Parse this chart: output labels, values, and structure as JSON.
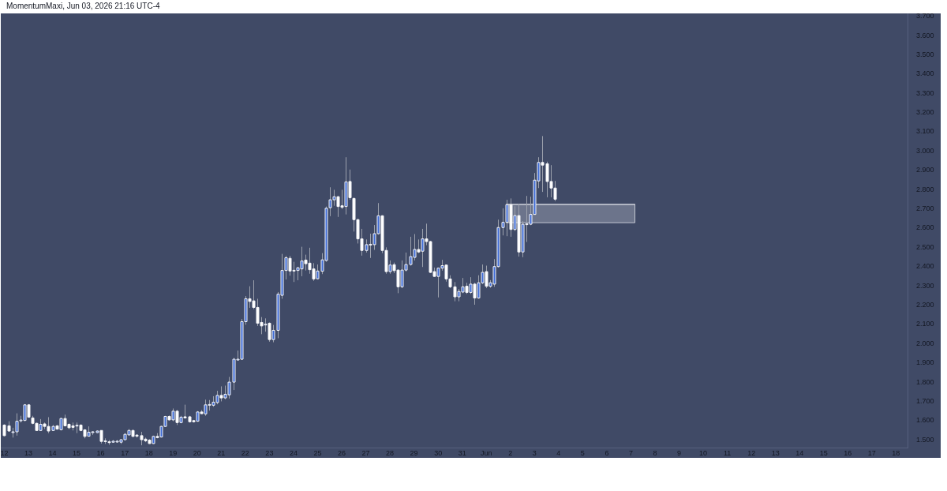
{
  "chart_data": {
    "type": "candlestick",
    "title": "MomentumMaxi, Jun 03, 2026 21:16 UTC-4",
    "series": [
      {
        "type": "line",
        "x": [
          "2026-06-01T20:00",
          "2026-06-07T04:00"
        ],
        "values": [
          2.723,
          2.723
        ],
        "lower": [
          2.628,
          2.628
        ],
        "upper": [
          2.723,
          2.723
        ],
        "color": "#d5d8e0"
      },
      {
        "x": [
          "2026-05-12T00:00",
          "2026-05-12T04:00",
          "2026-05-12T08:00",
          "2026-05-12T12:00",
          "2026-05-12T16:00",
          "2026-05-12T20:00",
          "2026-05-13T00:00",
          "2026-05-13T04:00",
          "2026-05-13T08:00",
          "2026-05-13T12:00",
          "2026-05-13T16:00",
          "2026-05-13T20:00",
          "2026-05-14T00:00",
          "2026-05-14T04:00",
          "2026-05-14T08:00",
          "2026-05-14T12:00",
          "2026-05-14T16:00",
          "2026-05-14T20:00",
          "2026-05-15T00:00",
          "2026-05-15T04:00",
          "2026-05-15T08:00",
          "2026-05-15T12:00",
          "2026-05-15T16:00",
          "2026-05-15T20:00",
          "2026-05-16T00:00",
          "2026-05-16T04:00",
          "2026-05-16T08:00",
          "2026-05-16T12:00",
          "2026-05-16T16:00",
          "2026-05-16T20:00",
          "2026-05-17T00:00",
          "2026-05-17T04:00",
          "2026-05-17T08:00",
          "2026-05-17T12:00",
          "2026-05-17T16:00",
          "2026-05-17T20:00",
          "2026-05-18T00:00",
          "2026-05-18T04:00",
          "2026-05-18T08:00",
          "2026-05-18T12:00",
          "2026-05-18T16:00",
          "2026-05-18T20:00",
          "2026-05-19T00:00",
          "2026-05-19T04:00",
          "2026-05-19T08:00",
          "2026-05-19T12:00",
          "2026-05-19T16:00",
          "2026-05-19T20:00",
          "2026-05-20T00:00",
          "2026-05-20T04:00",
          "2026-05-20T08:00",
          "2026-05-20T12:00",
          "2026-05-20T16:00",
          "2026-05-20T20:00",
          "2026-05-21T00:00",
          "2026-05-21T04:00",
          "2026-05-21T08:00",
          "2026-05-21T12:00",
          "2026-05-21T16:00",
          "2026-05-21T20:00",
          "2026-05-22T00:00",
          "2026-05-22T04:00",
          "2026-05-22T08:00",
          "2026-05-22T12:00",
          "2026-05-22T16:00",
          "2026-05-22T20:00",
          "2026-05-23T00:00",
          "2026-05-23T04:00",
          "2026-05-23T08:00",
          "2026-05-23T12:00",
          "2026-05-23T16:00",
          "2026-05-23T20:00",
          "2026-05-24T00:00",
          "2026-05-24T04:00",
          "2026-05-24T08:00",
          "2026-05-24T12:00",
          "2026-05-24T16:00",
          "2026-05-24T20:00",
          "2026-05-25T00:00",
          "2026-05-25T04:00",
          "2026-05-25T08:00",
          "2026-05-25T12:00",
          "2026-05-25T16:00",
          "2026-05-25T20:00",
          "2026-05-26T00:00",
          "2026-05-26T04:00",
          "2026-05-26T08:00",
          "2026-05-26T12:00",
          "2026-05-26T16:00",
          "2026-05-26T20:00",
          "2026-05-27T00:00",
          "2026-05-27T04:00",
          "2026-05-27T08:00",
          "2026-05-27T12:00",
          "2026-05-27T16:00",
          "2026-05-27T20:00",
          "2026-05-28T00:00",
          "2026-05-28T04:00",
          "2026-05-28T08:00",
          "2026-05-28T12:00",
          "2026-05-28T16:00",
          "2026-05-28T20:00",
          "2026-05-29T00:00",
          "2026-05-29T04:00",
          "2026-05-29T08:00",
          "2026-05-29T12:00",
          "2026-05-29T16:00",
          "2026-05-29T20:00",
          "2026-05-30T00:00",
          "2026-05-30T04:00",
          "2026-05-30T08:00",
          "2026-05-30T12:00",
          "2026-05-30T16:00",
          "2026-05-30T20:00",
          "2026-05-31T00:00",
          "2026-05-31T04:00",
          "2026-05-31T08:00",
          "2026-05-31T12:00",
          "2026-05-31T16:00",
          "2026-05-31T20:00",
          "2026-06-01T00:00",
          "2026-06-01T04:00",
          "2026-06-01T08:00",
          "2026-06-01T12:00",
          "2026-06-01T16:00",
          "2026-06-01T20:00",
          "2026-06-02T00:00",
          "2026-06-02T04:00",
          "2026-06-02T08:00",
          "2026-06-02T12:00",
          "2026-06-02T16:00",
          "2026-06-02T20:00",
          "2026-06-03T00:00",
          "2026-06-03T04:00",
          "2026-06-03T08:00",
          "2026-06-03T12:00",
          "2026-06-03T16:00",
          "2026-06-03T20:00"
        ],
        "ohlc": [
          [
            1.577,
            1.581,
            1.518,
            1.522
          ],
          [
            1.573,
            1.597,
            1.542,
            1.546
          ],
          [
            1.54,
            1.563,
            1.512,
            1.542
          ],
          [
            1.542,
            1.638,
            1.522,
            1.597
          ],
          [
            1.601,
            1.625,
            1.59,
            1.603
          ],
          [
            1.601,
            1.686,
            1.597,
            1.682
          ],
          [
            1.682,
            1.686,
            1.615,
            1.618
          ],
          [
            1.614,
            1.625,
            1.581,
            1.586
          ],
          [
            1.586,
            1.59,
            1.546,
            1.549
          ],
          [
            1.549,
            1.608,
            1.546,
            1.581
          ],
          [
            1.583,
            1.59,
            1.556,
            1.57
          ],
          [
            1.57,
            1.618,
            1.535,
            1.546
          ],
          [
            1.549,
            1.577,
            1.546,
            1.57
          ],
          [
            1.573,
            1.577,
            1.553,
            1.556
          ],
          [
            1.553,
            1.614,
            1.549,
            1.611
          ],
          [
            1.611,
            1.631,
            1.57,
            1.573
          ],
          [
            1.581,
            1.586,
            1.556,
            1.563
          ],
          [
            1.573,
            1.59,
            1.549,
            1.565
          ],
          [
            1.574,
            1.59,
            1.535,
            1.576
          ],
          [
            1.577,
            1.581,
            1.545,
            1.549
          ],
          [
            1.552,
            1.556,
            1.508,
            1.518
          ],
          [
            1.519,
            1.57,
            1.518,
            1.54
          ],
          [
            1.54,
            1.545,
            1.526,
            1.542
          ],
          [
            1.538,
            1.549,
            1.535,
            1.546
          ],
          [
            1.549,
            1.549,
            1.481,
            1.492
          ],
          [
            1.493,
            1.508,
            1.479,
            1.495
          ],
          [
            1.49,
            1.499,
            1.475,
            1.488
          ],
          [
            1.488,
            1.499,
            1.485,
            1.493
          ],
          [
            1.492,
            1.499,
            1.485,
            1.493
          ],
          [
            1.488,
            1.504,
            1.479,
            1.501
          ],
          [
            1.501,
            1.535,
            1.499,
            1.529
          ],
          [
            1.526,
            1.556,
            1.522,
            1.549
          ],
          [
            1.549,
            1.553,
            1.515,
            1.518
          ],
          [
            1.525,
            1.529,
            1.512,
            1.519
          ],
          [
            1.522,
            1.542,
            1.472,
            1.501
          ],
          [
            1.504,
            1.512,
            1.488,
            1.495
          ],
          [
            1.499,
            1.504,
            1.479,
            1.481
          ],
          [
            1.481,
            1.522,
            1.479,
            1.518
          ],
          [
            1.518,
            1.535,
            1.508,
            1.512
          ],
          [
            1.515,
            1.573,
            1.512,
            1.57
          ],
          [
            1.57,
            1.625,
            1.567,
            1.622
          ],
          [
            1.622,
            1.627,
            1.6,
            1.604
          ],
          [
            1.604,
            1.663,
            1.597,
            1.649
          ],
          [
            1.649,
            1.655,
            1.577,
            1.59
          ],
          [
            1.59,
            1.625,
            1.586,
            1.618
          ],
          [
            1.62,
            1.683,
            1.611,
            1.614
          ],
          [
            1.62,
            1.625,
            1.59,
            1.594
          ],
          [
            1.6,
            1.604,
            1.59,
            1.594
          ],
          [
            1.597,
            1.65,
            1.594,
            1.645
          ],
          [
            1.645,
            1.655,
            1.634,
            1.636
          ],
          [
            1.635,
            1.709,
            1.625,
            1.682
          ],
          [
            1.682,
            1.707,
            1.652,
            1.684
          ],
          [
            1.68,
            1.727,
            1.672,
            1.696
          ],
          [
            1.694,
            1.755,
            1.685,
            1.731
          ],
          [
            1.731,
            1.778,
            1.7,
            1.718
          ],
          [
            1.718,
            1.782,
            1.711,
            1.737
          ],
          [
            1.734,
            1.827,
            1.715,
            1.8
          ],
          [
            1.8,
            1.926,
            1.759,
            1.919
          ],
          [
            1.919,
            1.964,
            1.912,
            1.919
          ],
          [
            1.919,
            2.128,
            1.915,
            2.114
          ],
          [
            2.114,
            2.247,
            2.098,
            2.233
          ],
          [
            2.233,
            2.298,
            2.186,
            2.219
          ],
          [
            2.222,
            2.329,
            2.179,
            2.188
          ],
          [
            2.188,
            2.233,
            2.092,
            2.106
          ],
          [
            2.11,
            2.138,
            2.049,
            2.092
          ],
          [
            2.097,
            2.131,
            2.062,
            2.101
          ],
          [
            2.106,
            2.11,
            2.01,
            2.021
          ],
          [
            2.021,
            2.097,
            2.007,
            2.069
          ],
          [
            2.069,
            2.268,
            2.028,
            2.257
          ],
          [
            2.251,
            2.466,
            2.233,
            2.38
          ],
          [
            2.38,
            2.456,
            2.333,
            2.446
          ],
          [
            2.443,
            2.456,
            2.353,
            2.377
          ],
          [
            2.381,
            2.425,
            2.32,
            2.379
          ],
          [
            2.38,
            2.398,
            2.329,
            2.394
          ],
          [
            2.388,
            2.503,
            2.35,
            2.429
          ],
          [
            2.434,
            2.462,
            2.38,
            2.415
          ],
          [
            2.418,
            2.498,
            2.363,
            2.384
          ],
          [
            2.388,
            2.418,
            2.326,
            2.336
          ],
          [
            2.337,
            2.411,
            2.333,
            2.377
          ],
          [
            2.376,
            2.47,
            2.361,
            2.435
          ],
          [
            2.432,
            2.712,
            2.425,
            2.703
          ],
          [
            2.706,
            2.812,
            2.662,
            2.747
          ],
          [
            2.747,
            2.799,
            2.716,
            2.763
          ],
          [
            2.763,
            2.767,
            2.658,
            2.712
          ],
          [
            2.716,
            2.799,
            2.699,
            2.708
          ],
          [
            2.712,
            2.968,
            2.671,
            2.84
          ],
          [
            2.842,
            2.904,
            2.747,
            2.758
          ],
          [
            2.754,
            2.758,
            2.582,
            2.644
          ],
          [
            2.644,
            2.648,
            2.52,
            2.544
          ],
          [
            2.544,
            2.596,
            2.457,
            2.484
          ],
          [
            2.484,
            2.541,
            2.473,
            2.514
          ],
          [
            2.514,
            2.571,
            2.445,
            2.516
          ],
          [
            2.514,
            2.616,
            2.487,
            2.571
          ],
          [
            2.571,
            2.73,
            2.566,
            2.664
          ],
          [
            2.664,
            2.667,
            2.47,
            2.484
          ],
          [
            2.484,
            2.5,
            2.363,
            2.374
          ],
          [
            2.374,
            2.432,
            2.363,
            2.408
          ],
          [
            2.41,
            2.421,
            2.366,
            2.379
          ],
          [
            2.382,
            2.385,
            2.262,
            2.295
          ],
          [
            2.295,
            2.432,
            2.288,
            2.382
          ],
          [
            2.382,
            2.473,
            2.374,
            2.411
          ],
          [
            2.411,
            2.555,
            2.405,
            2.452
          ],
          [
            2.448,
            2.569,
            2.432,
            2.489
          ],
          [
            2.489,
            2.541,
            2.47,
            2.476
          ],
          [
            2.48,
            2.596,
            2.398,
            2.544
          ],
          [
            2.544,
            2.623,
            2.511,
            2.53
          ],
          [
            2.53,
            2.534,
            2.366,
            2.37
          ],
          [
            2.374,
            2.395,
            2.347,
            2.349
          ],
          [
            2.349,
            2.395,
            2.24,
            2.392
          ],
          [
            2.392,
            2.435,
            2.379,
            2.405
          ],
          [
            2.408,
            2.411,
            2.322,
            2.336
          ],
          [
            2.336,
            2.355,
            2.288,
            2.295
          ],
          [
            2.295,
            2.32,
            2.22,
            2.243
          ],
          [
            2.243,
            2.284,
            2.22,
            2.271
          ],
          [
            2.268,
            2.341,
            2.262,
            2.295
          ],
          [
            2.298,
            2.316,
            2.258,
            2.266
          ],
          [
            2.266,
            2.345,
            2.258,
            2.309
          ],
          [
            2.309,
            2.316,
            2.202,
            2.237
          ],
          [
            2.237,
            2.355,
            2.233,
            2.316
          ],
          [
            2.316,
            2.411,
            2.309,
            2.37
          ],
          [
            2.374,
            2.405,
            2.288,
            2.298
          ],
          [
            2.298,
            2.33,
            2.29,
            2.316
          ],
          [
            2.309,
            2.439,
            2.295,
            2.4
          ],
          [
            2.4,
            2.644,
            2.395,
            2.603
          ],
          [
            2.603,
            2.703,
            2.562,
            2.63
          ],
          [
            2.63,
            2.747,
            2.558,
            2.722
          ],
          [
            2.722,
            2.754,
            2.555,
            2.593
          ],
          [
            2.593,
            2.713,
            2.585,
            2.665
          ],
          [
            2.665,
            2.726,
            2.452,
            2.476
          ],
          [
            2.476,
            2.637,
            2.449,
            2.62
          ],
          [
            2.62,
            2.767,
            2.528,
            2.622
          ],
          [
            2.62,
            2.763,
            2.615,
            2.671
          ],
          [
            2.671,
            2.886,
            2.671,
            2.849
          ],
          [
            2.845,
            2.968,
            2.808,
            2.941
          ],
          [
            2.941,
            3.078,
            2.788,
            2.927
          ],
          [
            2.934,
            2.945,
            2.76,
            2.842
          ],
          [
            2.842,
            2.927,
            2.76,
            2.808
          ],
          [
            2.808,
            2.845,
            2.74,
            2.75
          ]
        ],
        "colors": [
          "#ffffff",
          "#ffffff",
          "#3d6ad6",
          "#3d6ad6",
          "#3d6ad6",
          "#3d6ad6",
          "#ffffff",
          "#ffffff",
          "#ffffff",
          "#3d6ad6",
          "#ffffff",
          "#ffffff",
          "#3d6ad6",
          "#ffffff",
          "#3d6ad6",
          "#ffffff",
          "#ffffff",
          "#ffffff",
          "#3d6ad6",
          "#ffffff",
          "#ffffff",
          "#3d6ad6",
          "#3d6ad6",
          "#3d6ad6",
          "#ffffff",
          "#3d6ad6",
          "#ffffff",
          "#3d6ad6",
          "#3d6ad6",
          "#3d6ad6",
          "#3d6ad6",
          "#3d6ad6",
          "#ffffff",
          "#ffffff",
          "#ffffff",
          "#ffffff",
          "#ffffff",
          "#3d6ad6",
          "#ffffff",
          "#3d6ad6",
          "#3d6ad6",
          "#ffffff",
          "#3d6ad6",
          "#ffffff",
          "#3d6ad6",
          "#ffffff",
          "#ffffff",
          "#ffffff",
          "#3d6ad6",
          "#ffffff",
          "#3d6ad6",
          "#3d6ad6",
          "#3d6ad6",
          "#3d6ad6",
          "#ffffff",
          "#3d6ad6",
          "#3d6ad6",
          "#3d6ad6",
          "#3d6ad6",
          "#3d6ad6",
          "#3d6ad6",
          "#ffffff",
          "#ffffff",
          "#ffffff",
          "#ffffff",
          "#3d6ad6",
          "#ffffff",
          "#3d6ad6",
          "#3d6ad6",
          "#3d6ad6",
          "#3d6ad6",
          "#ffffff",
          "#ffffff",
          "#3d6ad6",
          "#3d6ad6",
          "#ffffff",
          "#ffffff",
          "#ffffff",
          "#3d6ad6",
          "#3d6ad6",
          "#3d6ad6",
          "#3d6ad6",
          "#3d6ad6",
          "#ffffff",
          "#ffffff",
          "#3d6ad6",
          "#ffffff",
          "#ffffff",
          "#ffffff",
          "#ffffff",
          "#3d6ad6",
          "#3d6ad6",
          "#3d6ad6",
          "#3d6ad6",
          "#ffffff",
          "#ffffff",
          "#3d6ad6",
          "#ffffff",
          "#ffffff",
          "#3d6ad6",
          "#3d6ad6",
          "#3d6ad6",
          "#3d6ad6",
          "#ffffff",
          "#3d6ad6",
          "#ffffff",
          "#ffffff",
          "#ffffff",
          "#3d6ad6",
          "#3d6ad6",
          "#ffffff",
          "#ffffff",
          "#ffffff",
          "#3d6ad6",
          "#3d6ad6",
          "#ffffff",
          "#3d6ad6",
          "#ffffff",
          "#3d6ad6",
          "#3d6ad6",
          "#ffffff",
          "#3d6ad6",
          "#3d6ad6",
          "#3d6ad6",
          "#3d6ad6",
          "#3d6ad6",
          "#ffffff",
          "#3d6ad6",
          "#ffffff",
          "#3d6ad6",
          "#3d6ad6",
          "#3d6ad6",
          "#3d6ad6",
          "#3d6ad6",
          "#ffffff",
          "#ffffff",
          "#ffffff",
          "#ffffff"
        ]
      }
    ],
    "xlim": [
      "2026-05-11T20:30",
      "2026-06-18T11:30"
    ],
    "xticks": [
      {
        "value": "2026-05-12",
        "label": "12"
      },
      {
        "value": "2026-05-13",
        "label": "13"
      },
      {
        "value": "2026-05-14",
        "label": "14"
      },
      {
        "value": "2026-05-15",
        "label": "15"
      },
      {
        "value": "2026-05-16",
        "label": "16"
      },
      {
        "value": "2026-05-17",
        "label": "17"
      },
      {
        "value": "2026-05-18",
        "label": "18"
      },
      {
        "value": "2026-05-19",
        "label": "19"
      },
      {
        "value": "2026-05-20",
        "label": "20"
      },
      {
        "value": "2026-05-21",
        "label": "21"
      },
      {
        "value": "2026-05-22",
        "label": "22"
      },
      {
        "value": "2026-05-23",
        "label": "23"
      },
      {
        "value": "2026-05-24",
        "label": "24"
      },
      {
        "value": "2026-05-25",
        "label": "25"
      },
      {
        "value": "2026-05-26",
        "label": "26"
      },
      {
        "value": "2026-05-27",
        "label": "27"
      },
      {
        "value": "2026-05-28",
        "label": "28"
      },
      {
        "value": "2026-05-29",
        "label": "29"
      },
      {
        "value": "2026-05-30",
        "label": "30"
      },
      {
        "value": "2026-05-31",
        "label": "31"
      },
      {
        "value": "2026-06-01",
        "label": "Jun"
      },
      {
        "value": "2026-06-02",
        "label": "2"
      },
      {
        "value": "2026-06-03",
        "label": "3"
      },
      {
        "value": "2026-06-04",
        "label": "4"
      },
      {
        "value": "2026-06-05",
        "label": "5"
      },
      {
        "value": "2026-06-06",
        "label": "6"
      },
      {
        "value": "2026-06-07",
        "label": "7"
      },
      {
        "value": "2026-06-08",
        "label": "8"
      },
      {
        "value": "2026-06-09",
        "label": "9"
      },
      {
        "value": "2026-06-10",
        "label": "10"
      },
      {
        "value": "2026-06-11",
        "label": "11"
      },
      {
        "value": "2026-06-12",
        "label": "12"
      },
      {
        "value": "2026-06-13",
        "label": "13"
      },
      {
        "value": "2026-06-14",
        "label": "14"
      },
      {
        "value": "2026-06-15",
        "label": "15"
      },
      {
        "value": "2026-06-16",
        "label": "16"
      },
      {
        "value": "2026-06-17",
        "label": "17"
      },
      {
        "value": "2026-06-18",
        "label": "18"
      }
    ],
    "ylim": [
      1.46,
      3.715
    ],
    "yticks": [
      {
        "value": 1.5,
        "label": "1.500"
      },
      {
        "value": 1.6,
        "label": "1.600"
      },
      {
        "value": 1.7,
        "label": "1.700"
      },
      {
        "value": 1.8,
        "label": "1.800"
      },
      {
        "value": 1.9,
        "label": "1.900"
      },
      {
        "value": 2.0,
        "label": "2.000"
      },
      {
        "value": 2.1,
        "label": "2.100"
      },
      {
        "value": 2.2,
        "label": "2.200"
      },
      {
        "value": 2.3,
        "label": "2.300"
      },
      {
        "value": 2.4,
        "label": "2.400"
      },
      {
        "value": 2.5,
        "label": "2.500"
      },
      {
        "value": 2.6,
        "label": "2.600"
      },
      {
        "value": 2.7,
        "label": "2.700"
      },
      {
        "value": 2.8,
        "label": "2.800"
      },
      {
        "value": 2.9,
        "label": "2.900"
      },
      {
        "value": 3.0,
        "label": "3.000"
      },
      {
        "value": 3.1,
        "label": "3.100"
      },
      {
        "value": 3.2,
        "label": "3.200"
      },
      {
        "value": 3.3,
        "label": "3.300"
      },
      {
        "value": 3.4,
        "label": "3.400"
      },
      {
        "value": 3.5,
        "label": "3.500"
      },
      {
        "value": 3.6,
        "label": "3.600"
      },
      {
        "value": 3.7,
        "label": "3.700"
      }
    ]
  }
}
